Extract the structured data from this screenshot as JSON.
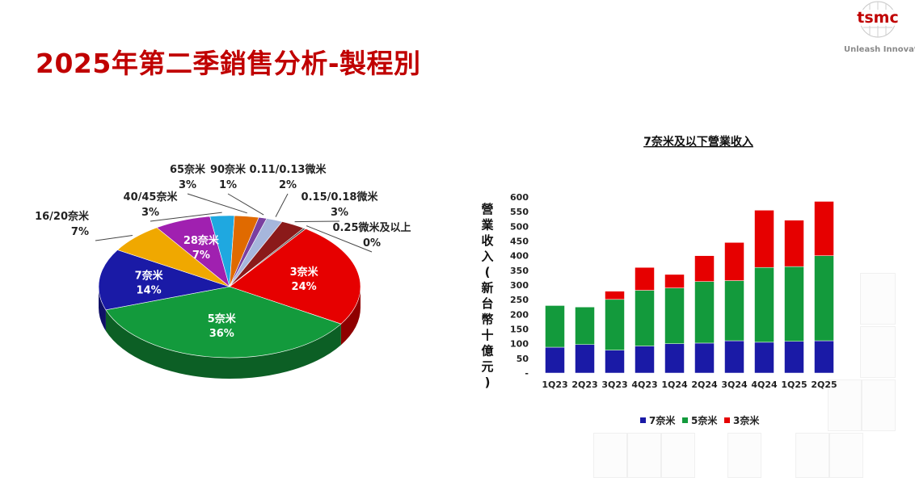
{
  "page": {
    "title": "2025年第二季銷售分析-製程別",
    "logo_text": "tsmc",
    "tagline": "Unleash Innovatio",
    "colors": {
      "title": "#c00000",
      "brand": "#c00000"
    }
  },
  "chart_data": [
    {
      "type": "pie",
      "title": "",
      "slices": [
        {
          "label": "3奈米",
          "value": 24,
          "display": "24%",
          "color": "#e60000"
        },
        {
          "label": "5奈米",
          "value": 36,
          "display": "36%",
          "color": "#139a3c"
        },
        {
          "label": "7奈米",
          "value": 14,
          "display": "14%",
          "color": "#1a1aa6"
        },
        {
          "label": "16/20奈米",
          "value": 7,
          "display": "7%",
          "color": "#f0a800"
        },
        {
          "label": "28奈米",
          "value": 7,
          "display": "7%",
          "color": "#a020b0"
        },
        {
          "label": "40/45奈米",
          "value": 3,
          "display": "3%",
          "color": "#1fa8e0"
        },
        {
          "label": "65奈米",
          "value": 3,
          "display": "3%",
          "color": "#e06a00"
        },
        {
          "label": "90奈米",
          "value": 1,
          "display": "1%",
          "color": "#7a3fa0"
        },
        {
          "label": "0.11/0.13微米",
          "value": 2,
          "display": "2%",
          "color": "#a6b6dc"
        },
        {
          "label": "0.15/0.18微米",
          "value": 3,
          "display": "3%",
          "color": "#8b1a1a"
        },
        {
          "label": "0.25微米及以上",
          "value": 0,
          "display": "0%",
          "color": "#555555"
        }
      ]
    },
    {
      "type": "bar",
      "stacked": true,
      "title": "7奈米及以下營業收入",
      "ylabel": "營業收入(新台幣十億元)",
      "xlabel": "",
      "ylim": [
        0,
        600
      ],
      "yticks": [
        "-",
        "50",
        "100",
        "150",
        "200",
        "250",
        "300",
        "350",
        "400",
        "450",
        "500",
        "550",
        "600"
      ],
      "categories": [
        "1Q23",
        "2Q23",
        "3Q23",
        "4Q23",
        "1Q24",
        "2Q24",
        "3Q24",
        "4Q24",
        "1Q25",
        "2Q25"
      ],
      "series": [
        {
          "name": "7奈米",
          "color": "#1a1aa6",
          "values": [
            88,
            97,
            78,
            92,
            100,
            102,
            110,
            105,
            108,
            110
          ]
        },
        {
          "name": "5奈米",
          "color": "#139a3c",
          "values": [
            142,
            128,
            173,
            190,
            190,
            210,
            205,
            255,
            255,
            290
          ]
        },
        {
          "name": "3奈米",
          "color": "#e60000",
          "values": [
            0,
            0,
            28,
            78,
            46,
            88,
            130,
            195,
            158,
            185
          ]
        }
      ],
      "legend_position": "bottom"
    }
  ]
}
